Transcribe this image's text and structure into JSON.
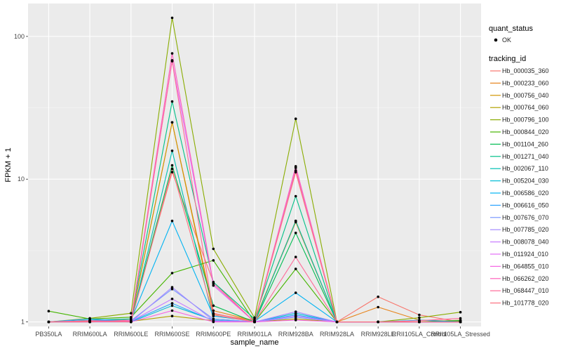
{
  "chart_data": {
    "type": "line",
    "xlabel": "sample_name",
    "ylabel": "FPKM + 1",
    "y_scale": "log10",
    "ylim": [
      0.93,
      170
    ],
    "y_ticks": [
      1,
      10,
      100
    ],
    "y_tick_labels": [
      "1",
      "10",
      "100"
    ],
    "grid": true,
    "legend_position": "right",
    "categories": [
      "PB350LA",
      "RRIM600LA",
      "RRIM600LE",
      "RRIM600SE",
      "RRIM600PE",
      "RRIM901LA",
      "RRIM928BA",
      "RRIM928LA",
      "RRIM928LE",
      "RRII105LA_Control",
      "RRII105LA_Stressed"
    ],
    "quant_status_legend": {
      "title": "quant_status",
      "entries": [
        "OK"
      ]
    },
    "legend_title": "tracking_id",
    "series": [
      {
        "name": "Hb_000035_360",
        "color": "#F8766D",
        "values": [
          1.0,
          1.01,
          1.05,
          11.2,
          1.9,
          1.0,
          11.5,
          1.0,
          1.5,
          1.12,
          1.0
        ]
      },
      {
        "name": "Hb_000233_060",
        "color": "#E7851E",
        "values": [
          1.0,
          1.01,
          1.01,
          25.0,
          1.2,
          1.02,
          5.0,
          1.0,
          1.27,
          1.03,
          1.01
        ]
      },
      {
        "name": "Hb_000756_040",
        "color": "#D09400",
        "values": [
          1.0,
          1.02,
          1.02,
          25.0,
          1.14,
          1.02,
          5.1,
          1.0,
          1.0,
          1.0,
          1.03
        ]
      },
      {
        "name": "Hb_000764_060",
        "color": "#B2A100",
        "values": [
          1.0,
          1.0,
          1.01,
          1.1,
          1.02,
          1.0,
          1.05,
          1.0,
          1.0,
          1.0,
          1.0
        ]
      },
      {
        "name": "Hb_000796_100",
        "color": "#89AC00",
        "values": [
          1.0,
          1.06,
          1.15,
          135.0,
          3.25,
          1.07,
          26.5,
          1.0,
          1.0,
          1.07,
          1.17
        ]
      },
      {
        "name": "Hb_000844_020",
        "color": "#45B500",
        "values": [
          1.19,
          1.05,
          1.08,
          2.2,
          2.7,
          1.0,
          2.35,
          1.0,
          1.0,
          1.0,
          1.0
        ]
      },
      {
        "name": "Hb_001104_260",
        "color": "#00BC51",
        "values": [
          1.0,
          1.02,
          1.02,
          12.5,
          1.3,
          1.0,
          4.2,
          1.0,
          1.0,
          1.0,
          1.02
        ]
      },
      {
        "name": "Hb_001271_040",
        "color": "#00C087",
        "values": [
          1.0,
          1.03,
          1.05,
          35.0,
          1.9,
          1.05,
          7.6,
          1.0,
          1.0,
          1.0,
          1.0
        ]
      },
      {
        "name": "Hb_002067_110",
        "color": "#00C0B2",
        "values": [
          1.0,
          1.0,
          1.0,
          15.8,
          1.05,
          1.0,
          5.1,
          1.0,
          1.0,
          1.0,
          1.0
        ]
      },
      {
        "name": "Hb_005204_030",
        "color": "#00BCD6",
        "values": [
          1.0,
          1.01,
          1.0,
          1.3,
          1.03,
          1.0,
          1.15,
          1.0,
          1.0,
          1.0,
          1.0
        ]
      },
      {
        "name": "Hb_006586_020",
        "color": "#00B3F2",
        "values": [
          1.0,
          1.02,
          1.03,
          5.1,
          1.1,
          1.01,
          1.6,
          1.0,
          1.0,
          1.03,
          1.0
        ]
      },
      {
        "name": "Hb_006616_050",
        "color": "#29A3FF",
        "values": [
          1.0,
          1.05,
          1.01,
          1.35,
          1.02,
          1.0,
          1.12,
          1.0,
          1.0,
          1.0,
          1.0
        ]
      },
      {
        "name": "Hb_007676_070",
        "color": "#7997FF",
        "values": [
          1.0,
          1.0,
          1.02,
          1.7,
          1.05,
          1.0,
          1.08,
          1.0,
          1.0,
          1.0,
          1.0
        ]
      },
      {
        "name": "Hb_007785_020",
        "color": "#A58AFF",
        "values": [
          1.0,
          1.02,
          1.0,
          1.75,
          1.02,
          1.0,
          1.18,
          1.0,
          1.0,
          1.0,
          1.0
        ]
      },
      {
        "name": "Hb_008078_040",
        "color": "#C77CFF",
        "values": [
          1.0,
          1.0,
          1.01,
          1.45,
          1.01,
          1.0,
          1.1,
          1.0,
          1.0,
          1.0,
          1.0
        ]
      },
      {
        "name": "Hb_011924_010",
        "color": "#E36EF6",
        "values": [
          1.0,
          1.01,
          1.0,
          68.0,
          1.8,
          1.0,
          12.0,
          1.0,
          1.0,
          1.0,
          1.0
        ]
      },
      {
        "name": "Hb_064855_010",
        "color": "#F564E3",
        "values": [
          1.0,
          1.0,
          1.0,
          1.2,
          1.0,
          1.0,
          1.03,
          1.0,
          1.0,
          1.0,
          1.0
        ]
      },
      {
        "name": "Hb_066262_020",
        "color": "#FF62BC",
        "values": [
          1.0,
          1.02,
          1.01,
          76.0,
          1.85,
          1.0,
          12.3,
          1.0,
          1.0,
          1.0,
          1.0
        ]
      },
      {
        "name": "Hb_068447_010",
        "color": "#FF6A98",
        "values": [
          1.0,
          1.0,
          1.03,
          67.0,
          1.15,
          1.0,
          2.85,
          1.0,
          1.0,
          1.02,
          1.06
        ]
      },
      {
        "name": "Hb_101778_020",
        "color": "#FC717F",
        "values": [
          1.0,
          1.01,
          1.0,
          11.8,
          1.12,
          1.0,
          11.2,
          1.0,
          1.0,
          1.0,
          1.0
        ]
      }
    ]
  }
}
